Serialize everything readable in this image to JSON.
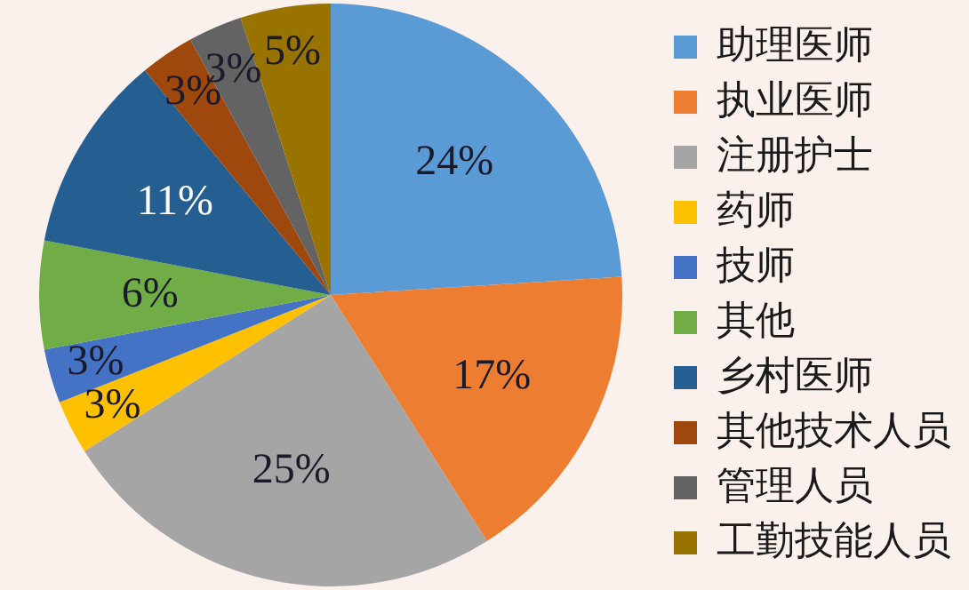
{
  "chart_data": {
    "type": "pie",
    "categories": [
      "助理医师",
      "执业医师",
      "注册护士",
      "药师",
      "技师",
      "其他",
      "乡村医师",
      "其他技术人员",
      "管理人员",
      "工勤技能人员"
    ],
    "values": [
      24,
      17,
      25,
      3,
      3,
      6,
      11,
      3,
      3,
      5
    ],
    "value_labels": [
      "24%",
      "17%",
      "25%",
      "3%",
      "3%",
      "6%",
      "11%",
      "3%",
      "3%",
      "5%"
    ],
    "colors": [
      "#5b9bd5",
      "#ed7d31",
      "#a5a5a5",
      "#ffc000",
      "#4472c4",
      "#70ad47",
      "#255e91",
      "#9e480e",
      "#636363",
      "#997300"
    ],
    "legend": "right"
  }
}
